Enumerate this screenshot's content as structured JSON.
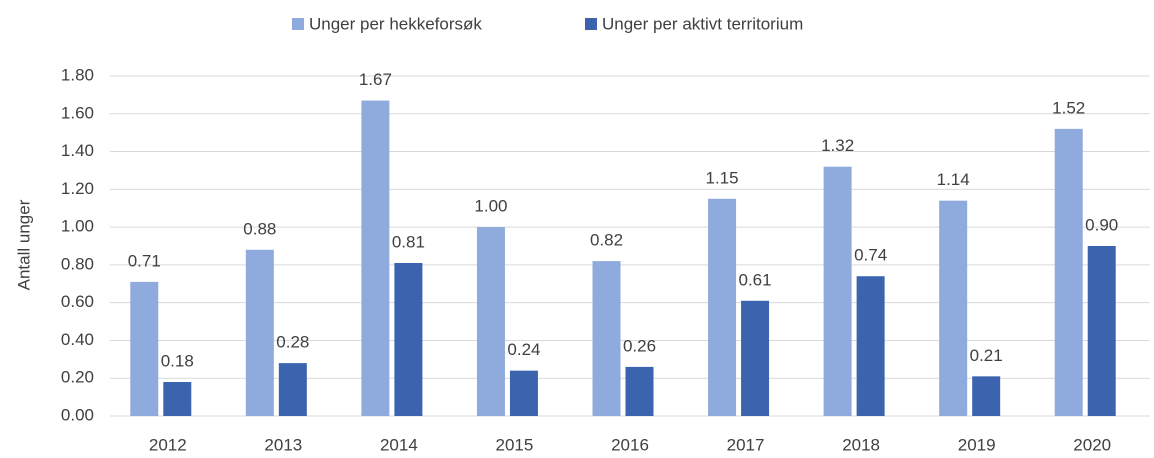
{
  "chart_data": {
    "type": "bar",
    "y_label": "Antall unger",
    "categories": [
      "2012",
      "2013",
      "2014",
      "2015",
      "2016",
      "2017",
      "2018",
      "2019",
      "2020"
    ],
    "series": [
      {
        "name": "Unger per hekkeforsøk",
        "color": "#8faadc",
        "values": [
          0.71,
          0.88,
          1.67,
          1.0,
          0.82,
          1.15,
          1.32,
          1.14,
          1.52
        ],
        "value_labels": [
          "0.71",
          "0.88",
          "1.67",
          "1.00",
          "0.82",
          "1.15",
          "1.32",
          "1.14",
          "1.52"
        ]
      },
      {
        "name": "Unger per aktivt territorium",
        "color": "#3c64ae",
        "values": [
          0.18,
          0.28,
          0.81,
          0.24,
          0.26,
          0.61,
          0.74,
          0.21,
          0.9
        ],
        "value_labels": [
          "0.18",
          "0.28",
          "0.81",
          "0.24",
          "0.26",
          "0.61",
          "0.74",
          "0.21",
          "0.90"
        ]
      }
    ],
    "ylim": [
      0,
      1.8
    ],
    "yticks": [
      {
        "value": 0,
        "label": "0.00"
      },
      {
        "value": 0.2,
        "label": "0.20"
      },
      {
        "value": 0.4,
        "label": "0.40"
      },
      {
        "value": 0.6,
        "label": "0.60"
      },
      {
        "value": 0.8,
        "label": "0.80"
      },
      {
        "value": 1,
        "label": "1.00"
      },
      {
        "value": 1.2,
        "label": "1.20"
      },
      {
        "value": 1.4,
        "label": "1.40"
      },
      {
        "value": 1.6,
        "label": "1.60"
      },
      {
        "value": 1.8,
        "label": "1.80"
      }
    ],
    "grid": true,
    "legend": "top"
  }
}
